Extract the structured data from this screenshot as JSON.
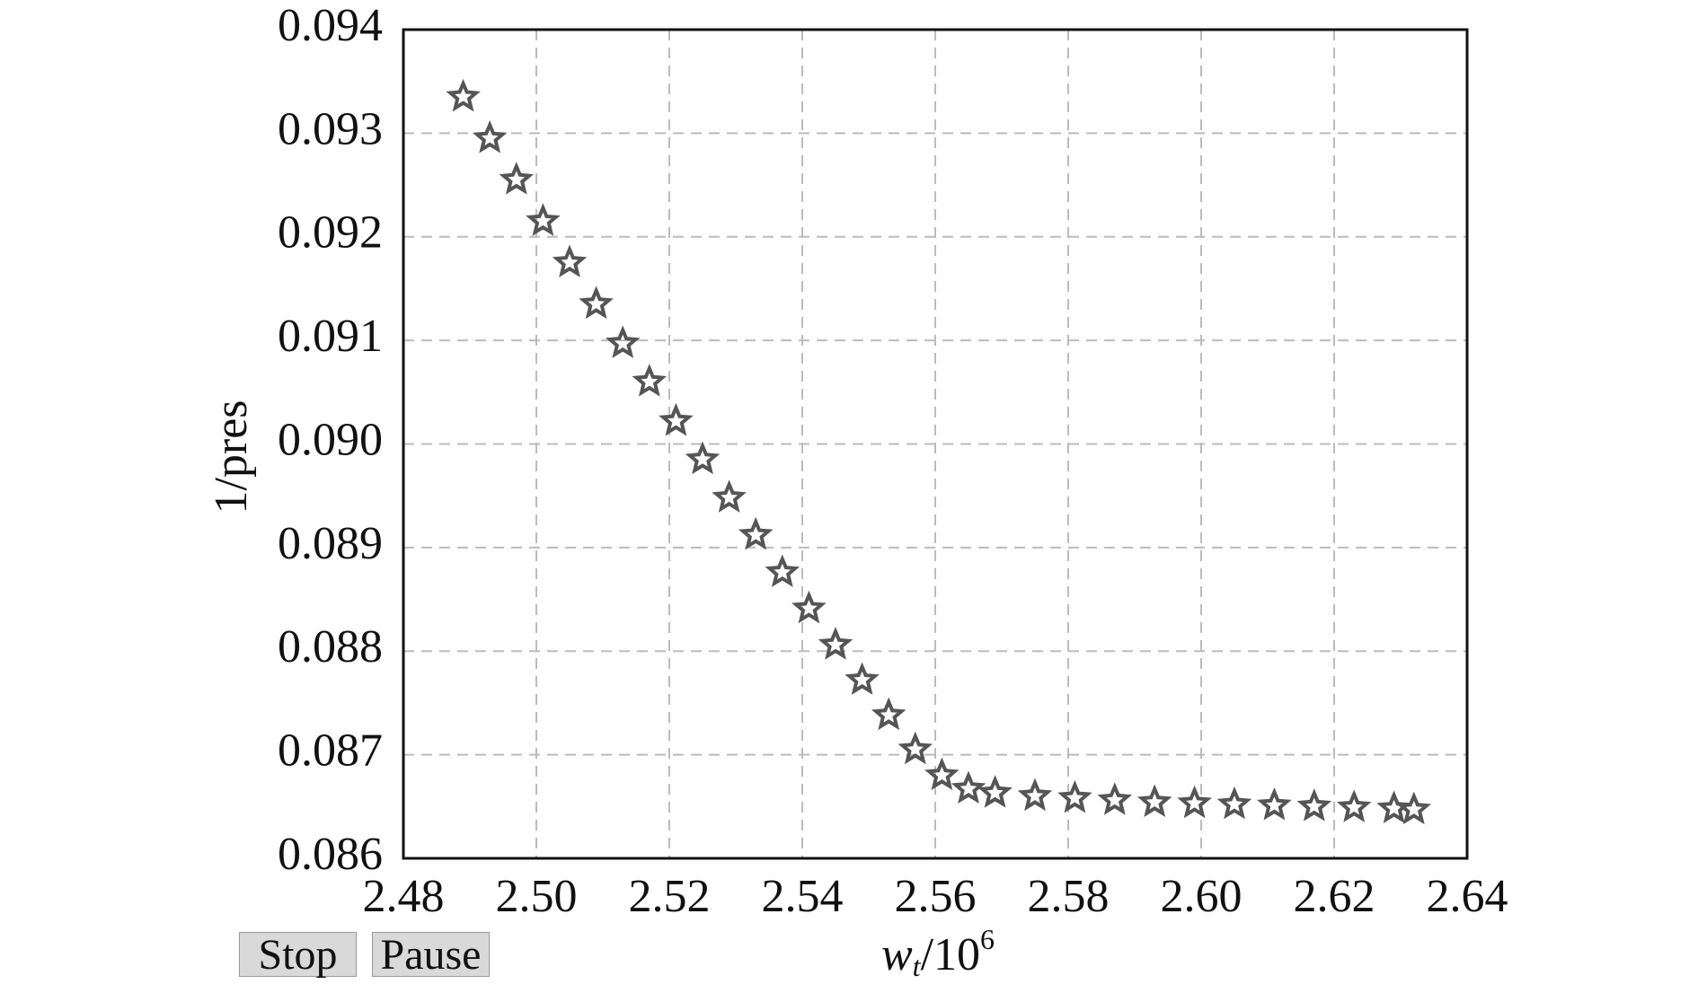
{
  "chart_data": {
    "type": "scatter",
    "y_label": "1/pres",
    "x_label": {
      "base": "w",
      "sub": "t",
      "rest": "/10",
      "sup": "6"
    },
    "xlim": [
      2.48,
      2.64
    ],
    "xticks": [
      2.48,
      {
        "value": 2.5,
        "label": "2.50"
      },
      2.52,
      2.54,
      2.56,
      2.58,
      {
        "value": 2.6,
        "label": "2.60"
      },
      2.62,
      2.64
    ],
    "ylim": [
      0.086,
      0.094
    ],
    "yticks": [
      0.086,
      0.087,
      0.088,
      0.089,
      {
        "value": 0.09,
        "label": "0.090"
      },
      0.091,
      0.092,
      0.093,
      0.094
    ],
    "grid": true,
    "color": "#555555",
    "x": [
      2.489,
      2.493,
      2.497,
      2.501,
      2.505,
      2.509,
      2.513,
      2.517,
      2.521,
      2.525,
      2.529,
      2.533,
      2.537,
      2.541,
      2.545,
      2.549,
      2.553,
      2.557,
      2.561,
      2.565,
      2.569,
      2.575,
      2.581,
      2.587,
      2.593,
      2.599,
      2.605,
      2.611,
      2.617,
      2.623,
      2.629,
      2.632
    ],
    "values": [
      0.09335,
      0.09295,
      0.09255,
      0.09215,
      0.09175,
      0.09135,
      0.09097,
      0.0906,
      0.09022,
      0.08985,
      0.08948,
      0.08912,
      0.08876,
      0.08841,
      0.08806,
      0.08772,
      0.08738,
      0.08705,
      0.0868,
      0.08667,
      0.08663,
      0.0866,
      0.08658,
      0.08656,
      0.08654,
      0.08653,
      0.08652,
      0.08651,
      0.0865,
      0.08649,
      0.08648,
      0.08647
    ]
  },
  "controls": [
    "Stop",
    "Pause"
  ]
}
